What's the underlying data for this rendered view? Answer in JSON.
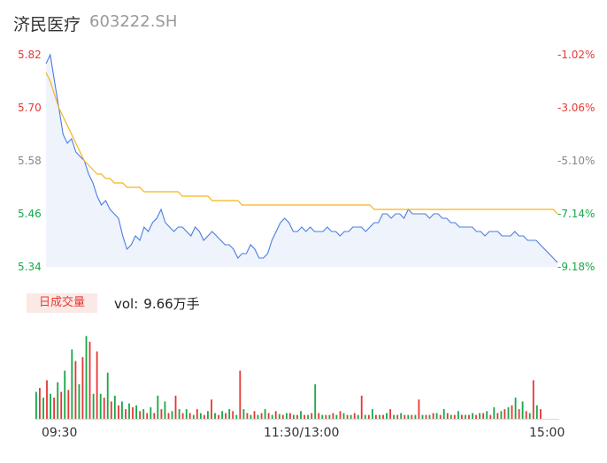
{
  "header": {
    "name": "济民医疗",
    "code": "603222.SH"
  },
  "colors": {
    "up": "#e53935",
    "down": "#18a84a",
    "neutral": "#888888",
    "price": "#4a7de2",
    "avg": "#f5b31a"
  },
  "chart_data": {
    "type": "line",
    "title": "",
    "y_price_ticks": [
      {
        "label": "5.82",
        "value": 5.82,
        "tone": "up"
      },
      {
        "label": "5.70",
        "value": 5.7,
        "tone": "up"
      },
      {
        "label": "5.58",
        "value": 5.58,
        "tone": "neutral"
      },
      {
        "label": "5.46",
        "value": 5.46,
        "tone": "down"
      },
      {
        "label": "5.34",
        "value": 5.34,
        "tone": "down"
      }
    ],
    "y_pct_ticks": [
      {
        "label": "-1.02%",
        "tone": "up"
      },
      {
        "label": "-3.06%",
        "tone": "up"
      },
      {
        "label": "-5.10%",
        "tone": "neutral"
      },
      {
        "label": "-7.14%",
        "tone": "down"
      },
      {
        "label": "-9.18%",
        "tone": "down"
      }
    ],
    "ylim": [
      5.34,
      5.82
    ],
    "x_ticks": [
      "09:30",
      "11:30/13:00",
      "15:00"
    ],
    "price_series": [
      5.8,
      5.82,
      5.76,
      5.7,
      5.64,
      5.62,
      5.63,
      5.6,
      5.59,
      5.58,
      5.55,
      5.53,
      5.5,
      5.48,
      5.49,
      5.47,
      5.46,
      5.45,
      5.41,
      5.38,
      5.39,
      5.41,
      5.4,
      5.43,
      5.42,
      5.44,
      5.45,
      5.47,
      5.44,
      5.43,
      5.42,
      5.43,
      5.43,
      5.42,
      5.41,
      5.43,
      5.42,
      5.4,
      5.41,
      5.42,
      5.41,
      5.4,
      5.39,
      5.39,
      5.38,
      5.36,
      5.37,
      5.37,
      5.39,
      5.38,
      5.36,
      5.36,
      5.37,
      5.4,
      5.42,
      5.44,
      5.45,
      5.44,
      5.42,
      5.42,
      5.43,
      5.42,
      5.43,
      5.42,
      5.42,
      5.42,
      5.43,
      5.42,
      5.42,
      5.41,
      5.42,
      5.42,
      5.43,
      5.43,
      5.43,
      5.42,
      5.43,
      5.44,
      5.44,
      5.46,
      5.46,
      5.45,
      5.46,
      5.46,
      5.45,
      5.47,
      5.46,
      5.46,
      5.46,
      5.46,
      5.45,
      5.46,
      5.46,
      5.45,
      5.45,
      5.44,
      5.44,
      5.43,
      5.43,
      5.43,
      5.43,
      5.42,
      5.42,
      5.41,
      5.42,
      5.42,
      5.42,
      5.41,
      5.41,
      5.41,
      5.42,
      5.41,
      5.41,
      5.4,
      5.4,
      5.4,
      5.39,
      5.38,
      5.37,
      5.36,
      5.35
    ],
    "avg_series": [
      5.78,
      5.76,
      5.73,
      5.7,
      5.68,
      5.66,
      5.64,
      5.62,
      5.6,
      5.58,
      5.57,
      5.56,
      5.55,
      5.55,
      5.54,
      5.54,
      5.53,
      5.53,
      5.53,
      5.52,
      5.52,
      5.52,
      5.52,
      5.51,
      5.51,
      5.51,
      5.51,
      5.51,
      5.51,
      5.51,
      5.51,
      5.51,
      5.5,
      5.5,
      5.5,
      5.5,
      5.5,
      5.5,
      5.5,
      5.49,
      5.49,
      5.49,
      5.49,
      5.49,
      5.49,
      5.49,
      5.48,
      5.48,
      5.48,
      5.48,
      5.48,
      5.48,
      5.48,
      5.48,
      5.48,
      5.48,
      5.48,
      5.48,
      5.48,
      5.48,
      5.48,
      5.48,
      5.48,
      5.48,
      5.48,
      5.48,
      5.48,
      5.48,
      5.48,
      5.48,
      5.48,
      5.48,
      5.48,
      5.48,
      5.48,
      5.48,
      5.48,
      5.47,
      5.47,
      5.47,
      5.47,
      5.47,
      5.47,
      5.47,
      5.47,
      5.47,
      5.47,
      5.47,
      5.47,
      5.47,
      5.47,
      5.47,
      5.47,
      5.47,
      5.47,
      5.47,
      5.47,
      5.47,
      5.47,
      5.47,
      5.47,
      5.47,
      5.47,
      5.47,
      5.47,
      5.47,
      5.47,
      5.47,
      5.47,
      5.47,
      5.47,
      5.47,
      5.47,
      5.47,
      5.47,
      5.47,
      5.47,
      5.47,
      5.47,
      5.47,
      5.46
    ],
    "volume_bars": [
      [
        0.28,
        "down"
      ],
      [
        0.32,
        "up"
      ],
      [
        0.22,
        "down"
      ],
      [
        0.4,
        "up"
      ],
      [
        0.26,
        "down"
      ],
      [
        0.22,
        "up"
      ],
      [
        0.38,
        "down"
      ],
      [
        0.28,
        "up"
      ],
      [
        0.5,
        "down"
      ],
      [
        0.3,
        "up"
      ],
      [
        0.72,
        "down"
      ],
      [
        0.6,
        "up"
      ],
      [
        0.36,
        "down"
      ],
      [
        0.64,
        "up"
      ],
      [
        0.86,
        "down"
      ],
      [
        0.8,
        "up"
      ],
      [
        0.26,
        "down"
      ],
      [
        0.7,
        "up"
      ],
      [
        0.26,
        "down"
      ],
      [
        0.22,
        "up"
      ],
      [
        0.48,
        "down"
      ],
      [
        0.18,
        "up"
      ],
      [
        0.24,
        "down"
      ],
      [
        0.14,
        "up"
      ],
      [
        0.18,
        "down"
      ],
      [
        0.1,
        "up"
      ],
      [
        0.16,
        "down"
      ],
      [
        0.12,
        "up"
      ],
      [
        0.14,
        "down"
      ],
      [
        0.08,
        "up"
      ],
      [
        0.1,
        "down"
      ],
      [
        0.06,
        "up"
      ],
      [
        0.12,
        "down"
      ],
      [
        0.06,
        "up"
      ],
      [
        0.24,
        "down"
      ],
      [
        0.1,
        "up"
      ],
      [
        0.18,
        "down"
      ],
      [
        0.06,
        "up"
      ],
      [
        0.08,
        "down"
      ],
      [
        0.24,
        "up"
      ],
      [
        0.1,
        "down"
      ],
      [
        0.06,
        "up"
      ],
      [
        0.1,
        "down"
      ],
      [
        0.06,
        "up"
      ],
      [
        0.04,
        "down"
      ],
      [
        0.1,
        "up"
      ],
      [
        0.06,
        "down"
      ],
      [
        0.04,
        "up"
      ],
      [
        0.08,
        "down"
      ],
      [
        0.2,
        "up"
      ],
      [
        0.06,
        "down"
      ],
      [
        0.04,
        "up"
      ],
      [
        0.08,
        "down"
      ],
      [
        0.06,
        "up"
      ],
      [
        0.1,
        "down"
      ],
      [
        0.08,
        "up"
      ],
      [
        0.04,
        "down"
      ],
      [
        0.5,
        "up"
      ],
      [
        0.1,
        "down"
      ],
      [
        0.06,
        "up"
      ],
      [
        0.04,
        "down"
      ],
      [
        0.08,
        "up"
      ],
      [
        0.04,
        "down"
      ],
      [
        0.06,
        "up"
      ],
      [
        0.1,
        "down"
      ],
      [
        0.06,
        "up"
      ],
      [
        0.04,
        "down"
      ],
      [
        0.08,
        "up"
      ],
      [
        0.05,
        "down"
      ],
      [
        0.04,
        "up"
      ],
      [
        0.06,
        "down"
      ],
      [
        0.06,
        "up"
      ],
      [
        0.04,
        "down"
      ],
      [
        0.04,
        "up"
      ],
      [
        0.08,
        "down"
      ],
      [
        0.04,
        "up"
      ],
      [
        0.04,
        "down"
      ],
      [
        0.06,
        "up"
      ],
      [
        0.36,
        "down"
      ],
      [
        0.06,
        "up"
      ],
      [
        0.04,
        "down"
      ],
      [
        0.04,
        "up"
      ],
      [
        0.04,
        "down"
      ],
      [
        0.06,
        "up"
      ],
      [
        0.04,
        "down"
      ],
      [
        0.08,
        "up"
      ],
      [
        0.06,
        "down"
      ],
      [
        0.04,
        "up"
      ],
      [
        0.04,
        "down"
      ],
      [
        0.06,
        "up"
      ],
      [
        0.04,
        "down"
      ],
      [
        0.24,
        "up"
      ],
      [
        0.04,
        "down"
      ],
      [
        0.04,
        "up"
      ],
      [
        0.1,
        "down"
      ],
      [
        0.04,
        "up"
      ],
      [
        0.04,
        "down"
      ],
      [
        0.04,
        "up"
      ],
      [
        0.06,
        "down"
      ],
      [
        0.1,
        "up"
      ],
      [
        0.04,
        "down"
      ],
      [
        0.04,
        "up"
      ],
      [
        0.06,
        "down"
      ],
      [
        0.04,
        "up"
      ],
      [
        0.04,
        "down"
      ],
      [
        0.04,
        "up"
      ],
      [
        0.04,
        "down"
      ],
      [
        0.2,
        "up"
      ],
      [
        0.04,
        "down"
      ],
      [
        0.04,
        "up"
      ],
      [
        0.04,
        "down"
      ],
      [
        0.06,
        "up"
      ],
      [
        0.06,
        "down"
      ],
      [
        0.04,
        "up"
      ],
      [
        0.1,
        "down"
      ],
      [
        0.06,
        "up"
      ],
      [
        0.04,
        "down"
      ],
      [
        0.04,
        "up"
      ],
      [
        0.08,
        "down"
      ],
      [
        0.04,
        "up"
      ],
      [
        0.04,
        "down"
      ],
      [
        0.04,
        "up"
      ],
      [
        0.06,
        "down"
      ],
      [
        0.04,
        "up"
      ],
      [
        0.06,
        "down"
      ],
      [
        0.06,
        "up"
      ],
      [
        0.08,
        "down"
      ],
      [
        0.04,
        "up"
      ],
      [
        0.12,
        "down"
      ],
      [
        0.06,
        "up"
      ],
      [
        0.08,
        "down"
      ],
      [
        0.1,
        "up"
      ],
      [
        0.12,
        "down"
      ],
      [
        0.14,
        "up"
      ],
      [
        0.22,
        "down"
      ],
      [
        0.1,
        "up"
      ],
      [
        0.18,
        "down"
      ],
      [
        0.08,
        "up"
      ],
      [
        0.06,
        "down"
      ],
      [
        0.4,
        "up"
      ],
      [
        0.14,
        "down"
      ],
      [
        0.1,
        "up"
      ]
    ]
  },
  "volume": {
    "badge": "日成交量",
    "label": "vol:",
    "value": "9.66万手"
  }
}
